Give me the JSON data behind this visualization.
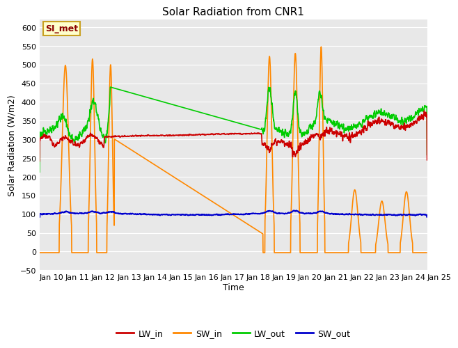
{
  "title": "Solar Radiation from CNR1",
  "xlabel": "Time",
  "ylabel": "Solar Radiation (W/m2)",
  "xlim": [
    0,
    15
  ],
  "ylim": [
    -50,
    620
  ],
  "yticks": [
    -50,
    0,
    50,
    100,
    150,
    200,
    250,
    300,
    350,
    400,
    450,
    500,
    550,
    600
  ],
  "xtick_labels": [
    "Jan 10",
    "Jan 11",
    "Jan 12",
    "Jan 13",
    "Jan 14",
    "Jan 15",
    "Jan 16",
    "Jan 17",
    "Jan 18",
    "Jan 19",
    "Jan 20",
    "Jan 21",
    "Jan 22",
    "Jan 23",
    "Jan 24",
    "Jan 25"
  ],
  "legend_label": "SI_met",
  "legend_border_color": "#c8a020",
  "bg_color": "#e8e8e8",
  "line_colors": {
    "LW_in": "#cc0000",
    "SW_in": "#ff8800",
    "LW_out": "#00cc00",
    "SW_out": "#0000cc"
  },
  "line_width": 1.2,
  "grid_color": "#ffffff",
  "title_fontsize": 11,
  "axis_fontsize": 9,
  "tick_fontsize": 8
}
